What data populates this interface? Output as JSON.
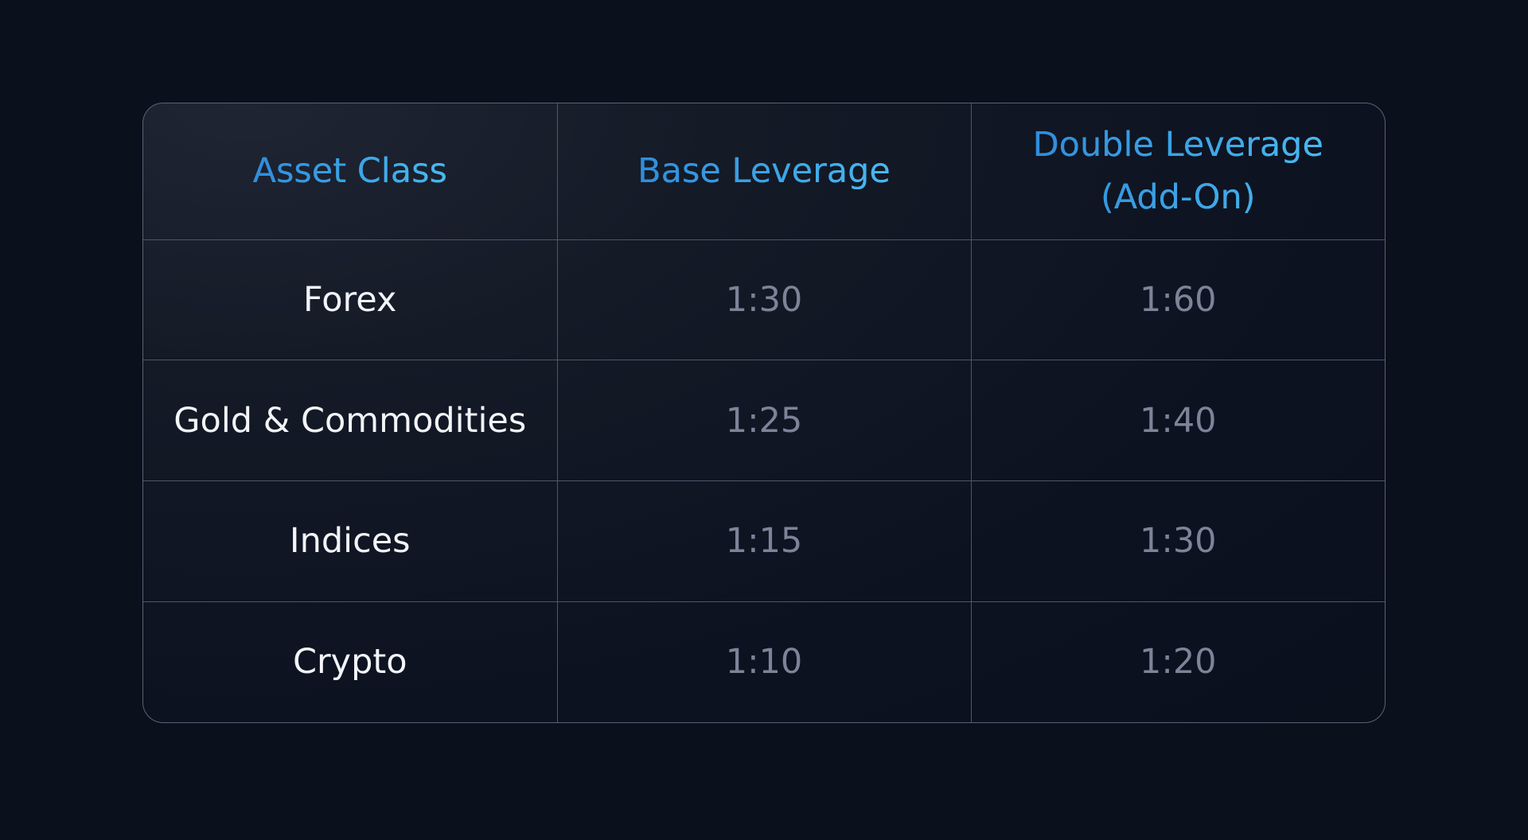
{
  "table": {
    "headers": [
      "Asset Class",
      "Base Leverage",
      "Double Leverage\n(Add-On)"
    ],
    "rows": [
      {
        "asset": "Forex",
        "base": "1:30",
        "double": "1:60"
      },
      {
        "asset": "Gold & Commodities",
        "base": "1:25",
        "double": "1:40"
      },
      {
        "asset": "Indices",
        "base": "1:15",
        "double": "1:30"
      },
      {
        "asset": "Crypto",
        "base": "1:10",
        "double": "1:20"
      }
    ]
  },
  "colors": {
    "background": "#0a101c",
    "header_text_start": "#2f8ddc",
    "header_text_end": "#48b9ef",
    "asset_text": "#f2f4f8",
    "value_text": "#7d8398",
    "border": "#5b6275"
  }
}
